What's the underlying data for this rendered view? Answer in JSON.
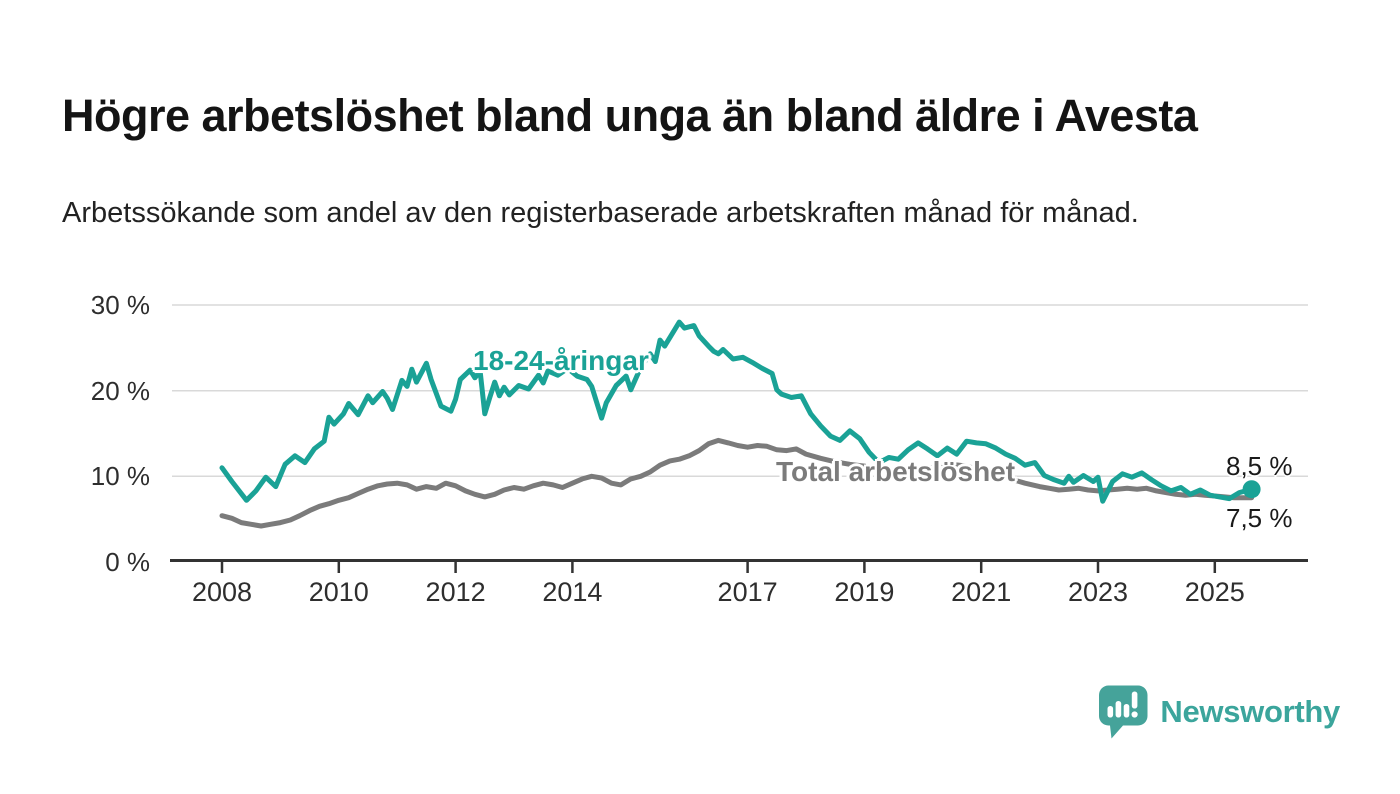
{
  "chart_data": {
    "type": "line",
    "title": "Högre arbetslöshet bland unga än bland äldre i Avesta",
    "subtitle": "Arbetssökande som andel av den registerbaserade arbetskraften månad för månad.",
    "xlabel": "",
    "ylabel": "",
    "unit": "%",
    "grid": "horizontal",
    "legend_position": "inline-labels",
    "xlim": [
      2007.1,
      2026.6
    ],
    "ylim": [
      0,
      32
    ],
    "axis_color": "#333333",
    "grid_color": "#d9d9d9",
    "x_ticks": [
      {
        "value": 2008,
        "label": "2008"
      },
      {
        "value": 2010,
        "label": "2010"
      },
      {
        "value": 2012,
        "label": "2012"
      },
      {
        "value": 2014,
        "label": "2014"
      },
      {
        "value": 2017,
        "label": "2017"
      },
      {
        "value": 2019,
        "label": "2019"
      },
      {
        "value": 2021,
        "label": "2021"
      },
      {
        "value": 2023,
        "label": "2023"
      },
      {
        "value": 2025,
        "label": "2025"
      }
    ],
    "y_ticks": [
      {
        "value": 0,
        "label": "0 %"
      },
      {
        "value": 10,
        "label": "10 %"
      },
      {
        "value": 20,
        "label": "20 %"
      },
      {
        "value": 30,
        "label": "30 %"
      }
    ],
    "end_labels": {
      "young": "8,5 %",
      "total": "7,5 %"
    },
    "series": [
      {
        "name": "18-24-åringar",
        "color": "#1aa296",
        "line_width": 5,
        "end_marker": true,
        "points": [
          [
            2008.0,
            11.0
          ],
          [
            2008.17,
            9.4
          ],
          [
            2008.42,
            7.2
          ],
          [
            2008.58,
            8.3
          ],
          [
            2008.75,
            9.9
          ],
          [
            2008.92,
            8.8
          ],
          [
            2009.08,
            11.4
          ],
          [
            2009.25,
            12.4
          ],
          [
            2009.42,
            11.6
          ],
          [
            2009.58,
            13.2
          ],
          [
            2009.75,
            14.1
          ],
          [
            2009.83,
            16.9
          ],
          [
            2009.92,
            16.1
          ],
          [
            2010.08,
            17.3
          ],
          [
            2010.17,
            18.5
          ],
          [
            2010.33,
            17.2
          ],
          [
            2010.5,
            19.4
          ],
          [
            2010.58,
            18.6
          ],
          [
            2010.75,
            19.9
          ],
          [
            2010.83,
            19.1
          ],
          [
            2010.92,
            17.8
          ],
          [
            2011.08,
            21.2
          ],
          [
            2011.17,
            20.5
          ],
          [
            2011.25,
            22.5
          ],
          [
            2011.33,
            21.0
          ],
          [
            2011.5,
            23.2
          ],
          [
            2011.58,
            21.3
          ],
          [
            2011.75,
            18.2
          ],
          [
            2011.92,
            17.6
          ],
          [
            2012.0,
            19.0
          ],
          [
            2012.08,
            21.3
          ],
          [
            2012.25,
            22.4
          ],
          [
            2012.33,
            21.5
          ],
          [
            2012.42,
            22.3
          ],
          [
            2012.5,
            17.3
          ],
          [
            2012.58,
            19.1
          ],
          [
            2012.67,
            21.0
          ],
          [
            2012.75,
            19.4
          ],
          [
            2012.83,
            20.4
          ],
          [
            2012.92,
            19.5
          ],
          [
            2013.08,
            20.6
          ],
          [
            2013.25,
            20.2
          ],
          [
            2013.42,
            21.8
          ],
          [
            2013.5,
            20.9
          ],
          [
            2013.58,
            22.3
          ],
          [
            2013.75,
            21.8
          ],
          [
            2013.92,
            22.6
          ],
          [
            2014.08,
            21.7
          ],
          [
            2014.25,
            21.3
          ],
          [
            2014.33,
            20.5
          ],
          [
            2014.5,
            16.8
          ],
          [
            2014.58,
            18.6
          ],
          [
            2014.75,
            20.6
          ],
          [
            2014.92,
            21.7
          ],
          [
            2015.0,
            20.1
          ],
          [
            2015.17,
            22.7
          ],
          [
            2015.33,
            24.3
          ],
          [
            2015.42,
            23.4
          ],
          [
            2015.5,
            25.9
          ],
          [
            2015.58,
            25.2
          ],
          [
            2015.75,
            27.1
          ],
          [
            2015.83,
            28.0
          ],
          [
            2015.92,
            27.3
          ],
          [
            2016.08,
            27.6
          ],
          [
            2016.17,
            26.4
          ],
          [
            2016.33,
            25.2
          ],
          [
            2016.42,
            24.6
          ],
          [
            2016.5,
            24.3
          ],
          [
            2016.58,
            24.8
          ],
          [
            2016.75,
            23.7
          ],
          [
            2016.92,
            23.9
          ],
          [
            2017.08,
            23.3
          ],
          [
            2017.25,
            22.6
          ],
          [
            2017.42,
            22.0
          ],
          [
            2017.5,
            20.1
          ],
          [
            2017.58,
            19.6
          ],
          [
            2017.75,
            19.2
          ],
          [
            2017.92,
            19.4
          ],
          [
            2018.08,
            17.3
          ],
          [
            2018.25,
            15.9
          ],
          [
            2018.42,
            14.7
          ],
          [
            2018.58,
            14.2
          ],
          [
            2018.75,
            15.3
          ],
          [
            2018.92,
            14.4
          ],
          [
            2019.08,
            12.8
          ],
          [
            2019.25,
            11.6
          ],
          [
            2019.42,
            12.2
          ],
          [
            2019.58,
            12.0
          ],
          [
            2019.75,
            13.1
          ],
          [
            2019.92,
            13.9
          ],
          [
            2020.08,
            13.2
          ],
          [
            2020.25,
            12.4
          ],
          [
            2020.42,
            13.3
          ],
          [
            2020.58,
            12.6
          ],
          [
            2020.75,
            14.1
          ],
          [
            2020.92,
            13.9
          ],
          [
            2021.08,
            13.8
          ],
          [
            2021.25,
            13.3
          ],
          [
            2021.42,
            12.6
          ],
          [
            2021.58,
            12.1
          ],
          [
            2021.75,
            11.3
          ],
          [
            2021.92,
            11.6
          ],
          [
            2022.08,
            10.1
          ],
          [
            2022.25,
            9.6
          ],
          [
            2022.42,
            9.2
          ],
          [
            2022.5,
            10.0
          ],
          [
            2022.58,
            9.3
          ],
          [
            2022.75,
            10.1
          ],
          [
            2022.92,
            9.4
          ],
          [
            2023.0,
            9.9
          ],
          [
            2023.08,
            7.1
          ],
          [
            2023.25,
            9.4
          ],
          [
            2023.42,
            10.3
          ],
          [
            2023.58,
            9.9
          ],
          [
            2023.75,
            10.4
          ],
          [
            2023.92,
            9.6
          ],
          [
            2024.08,
            8.9
          ],
          [
            2024.25,
            8.3
          ],
          [
            2024.42,
            8.7
          ],
          [
            2024.58,
            7.9
          ],
          [
            2024.75,
            8.4
          ],
          [
            2024.92,
            7.8
          ],
          [
            2025.08,
            7.6
          ],
          [
            2025.25,
            7.4
          ],
          [
            2025.42,
            8.1
          ],
          [
            2025.63,
            8.5
          ]
        ]
      },
      {
        "name": "Total arbetslöshet",
        "color": "#7b7b7b",
        "line_width": 5,
        "end_marker": false,
        "points": [
          [
            2008.0,
            5.4
          ],
          [
            2008.17,
            5.1
          ],
          [
            2008.33,
            4.6
          ],
          [
            2008.5,
            4.4
          ],
          [
            2008.67,
            4.2
          ],
          [
            2008.83,
            4.4
          ],
          [
            2009.0,
            4.6
          ],
          [
            2009.17,
            4.9
          ],
          [
            2009.33,
            5.4
          ],
          [
            2009.5,
            6.0
          ],
          [
            2009.67,
            6.5
          ],
          [
            2009.83,
            6.8
          ],
          [
            2010.0,
            7.2
          ],
          [
            2010.17,
            7.5
          ],
          [
            2010.33,
            8.0
          ],
          [
            2010.5,
            8.5
          ],
          [
            2010.67,
            8.9
          ],
          [
            2010.83,
            9.1
          ],
          [
            2011.0,
            9.2
          ],
          [
            2011.17,
            9.0
          ],
          [
            2011.33,
            8.5
          ],
          [
            2011.5,
            8.8
          ],
          [
            2011.67,
            8.6
          ],
          [
            2011.83,
            9.2
          ],
          [
            2012.0,
            8.9
          ],
          [
            2012.17,
            8.3
          ],
          [
            2012.33,
            7.9
          ],
          [
            2012.5,
            7.6
          ],
          [
            2012.67,
            7.9
          ],
          [
            2012.83,
            8.4
          ],
          [
            2013.0,
            8.7
          ],
          [
            2013.17,
            8.5
          ],
          [
            2013.33,
            8.9
          ],
          [
            2013.5,
            9.2
          ],
          [
            2013.67,
            9.0
          ],
          [
            2013.83,
            8.7
          ],
          [
            2014.0,
            9.2
          ],
          [
            2014.17,
            9.7
          ],
          [
            2014.33,
            10.0
          ],
          [
            2014.5,
            9.8
          ],
          [
            2014.67,
            9.2
          ],
          [
            2014.83,
            9.0
          ],
          [
            2015.0,
            9.7
          ],
          [
            2015.17,
            10.0
          ],
          [
            2015.33,
            10.5
          ],
          [
            2015.5,
            11.3
          ],
          [
            2015.67,
            11.8
          ],
          [
            2015.83,
            12.0
          ],
          [
            2016.0,
            12.4
          ],
          [
            2016.17,
            13.0
          ],
          [
            2016.33,
            13.8
          ],
          [
            2016.5,
            14.2
          ],
          [
            2016.67,
            13.9
          ],
          [
            2016.83,
            13.6
          ],
          [
            2017.0,
            13.4
          ],
          [
            2017.17,
            13.6
          ],
          [
            2017.33,
            13.5
          ],
          [
            2017.5,
            13.1
          ],
          [
            2017.67,
            13.0
          ],
          [
            2017.83,
            13.2
          ],
          [
            2018.0,
            12.6
          ],
          [
            2018.25,
            12.1
          ],
          [
            2018.5,
            11.7
          ],
          [
            2018.75,
            11.4
          ],
          [
            2019.0,
            11.2
          ],
          [
            2019.25,
            10.9
          ],
          [
            2019.5,
            10.6
          ],
          [
            2019.75,
            10.7
          ],
          [
            2020.0,
            10.9
          ],
          [
            2020.25,
            11.1
          ],
          [
            2020.5,
            11.4
          ],
          [
            2020.75,
            11.2
          ],
          [
            2021.0,
            10.7
          ],
          [
            2021.25,
            10.2
          ],
          [
            2021.5,
            9.7
          ],
          [
            2021.75,
            9.2
          ],
          [
            2022.0,
            8.8
          ],
          [
            2022.17,
            8.6
          ],
          [
            2022.33,
            8.4
          ],
          [
            2022.5,
            8.5
          ],
          [
            2022.67,
            8.6
          ],
          [
            2022.83,
            8.4
          ],
          [
            2023.0,
            8.3
          ],
          [
            2023.17,
            8.4
          ],
          [
            2023.33,
            8.5
          ],
          [
            2023.5,
            8.6
          ],
          [
            2023.67,
            8.5
          ],
          [
            2023.83,
            8.6
          ],
          [
            2024.0,
            8.3
          ],
          [
            2024.17,
            8.1
          ],
          [
            2024.33,
            7.9
          ],
          [
            2024.5,
            7.8
          ],
          [
            2024.67,
            7.9
          ],
          [
            2024.83,
            7.8
          ],
          [
            2025.0,
            7.7
          ],
          [
            2025.17,
            7.6
          ],
          [
            2025.33,
            7.5
          ],
          [
            2025.63,
            7.5
          ]
        ]
      }
    ]
  },
  "footer": {
    "brand": "Newsworthy",
    "logo_color": "#45a39a",
    "logo_text_color": "#3ba59c",
    "logo_icon": "speech-bubble-bar-chart"
  }
}
